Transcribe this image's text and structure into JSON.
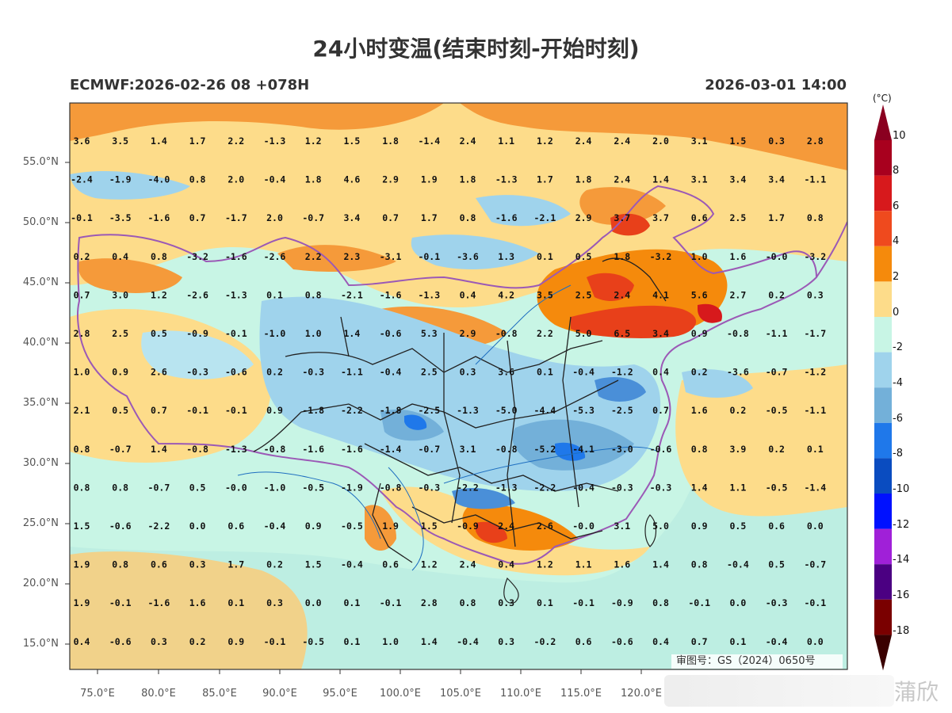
{
  "title": "24小时变温(结束时刻-开始时刻)",
  "subtitle_left": "ECMWF:2026-02-26 08 +078H",
  "subtitle_right": "2026-03-01 14:00",
  "lat_labels": [
    "55.0°N",
    "50.0°N",
    "45.0°N",
    "40.0°N",
    "35.0°N",
    "30.0°N",
    "25.0°N",
    "20.0°N",
    "15.0°N"
  ],
  "lon_labels": [
    "75.0°E",
    "80.0°E",
    "85.0°E",
    "90.0°E",
    "95.0°E",
    "100.0°E",
    "105.0°E",
    "110.0°E",
    "115.0°E",
    "120.0°E"
  ],
  "colorbar": {
    "unit": "(°C)",
    "labels": [
      "10",
      "8",
      "6",
      "4",
      "2",
      "0",
      "-2",
      "-4",
      "-6",
      "-8",
      "-10",
      "-12",
      "-14",
      "-16",
      "-18"
    ],
    "colors": [
      "#a8001e",
      "#d7191c",
      "#ef4a1e",
      "#f58a0c",
      "#fddc8a",
      "#c8f5e5",
      "#9fd3ec",
      "#73b0d9",
      "#1f78ea",
      "#0a4cc0",
      "#0011ff",
      "#a020d8",
      "#4b0082",
      "#7a0000"
    ]
  },
  "approval_number": "审图号：GS（2024）0650号",
  "watermark": "蒲欣",
  "grid_values": [
    [
      "3.6",
      "3.5",
      "1.4",
      "1.7",
      "2.2",
      "-1.3",
      "1.2",
      "1.5",
      "1.8",
      "-1.4",
      "2.4",
      "1.1",
      "1.2",
      "2.4",
      "2.4",
      "2.0",
      "3.1",
      "1.5",
      "0.3",
      "2.8"
    ],
    [
      "-2.4",
      "-1.9",
      "-4.0",
      "0.8",
      "2.0",
      "-0.4",
      "1.8",
      "4.6",
      "2.9",
      "1.9",
      "1.8",
      "-1.3",
      "1.7",
      "1.8",
      "2.4",
      "1.4",
      "3.1",
      "3.4",
      "3.4",
      "-1.1"
    ],
    [
      "-0.1",
      "-3.5",
      "-1.6",
      "0.7",
      "-1.7",
      "2.0",
      "-0.7",
      "3.4",
      "0.7",
      "1.7",
      "0.8",
      "-1.6",
      "-2.1",
      "2.9",
      "3.7",
      "3.7",
      "0.6",
      "2.5",
      "1.7",
      "0.8"
    ],
    [
      "0.2",
      "0.4",
      "0.8",
      "-3.2",
      "-1.6",
      "-2.6",
      "2.2",
      "2.3",
      "-3.1",
      "-0.1",
      "-3.6",
      "1.3",
      "0.1",
      "0.5",
      "1.8",
      "-3.2",
      "1.0",
      "1.6",
      "-0.0",
      "-3.2"
    ],
    [
      "0.7",
      "3.0",
      "1.2",
      "-2.6",
      "-1.3",
      "0.1",
      "0.8",
      "-2.1",
      "-1.6",
      "-1.3",
      "0.4",
      "4.2",
      "3.5",
      "2.5",
      "2.4",
      "4.1",
      "5.6",
      "2.7",
      "0.2",
      "0.3"
    ],
    [
      "2.8",
      "2.5",
      "0.5",
      "-0.9",
      "-0.1",
      "-1.0",
      "1.0",
      "1.4",
      "-0.6",
      "5.3",
      "2.9",
      "-0.8",
      "2.2",
      "5.0",
      "6.5",
      "3.4",
      "0.9",
      "-0.8",
      "-1.1",
      "-1.7"
    ],
    [
      "1.0",
      "0.9",
      "2.6",
      "-0.3",
      "-0.6",
      "0.2",
      "-0.3",
      "-1.1",
      "-0.4",
      "2.5",
      "0.3",
      "3.6",
      "0.1",
      "-0.4",
      "-1.2",
      "0.4",
      "0.2",
      "-3.6",
      "-0.7",
      "-1.2"
    ],
    [
      "2.1",
      "0.5",
      "0.7",
      "-0.1",
      "-0.1",
      "0.9",
      "-1.8",
      "-2.2",
      "-1.8",
      "-2.5",
      "-1.3",
      "-5.0",
      "-4.4",
      "-5.3",
      "-2.5",
      "0.7",
      "1.6",
      "0.2",
      "-0.5",
      "-1.1"
    ],
    [
      "0.8",
      "-0.7",
      "1.4",
      "-0.8",
      "-1.3",
      "-0.8",
      "-1.6",
      "-1.6",
      "-1.4",
      "-0.7",
      "3.1",
      "-0.8",
      "-5.2",
      "-4.1",
      "-3.0",
      "-0.6",
      "0.8",
      "3.9",
      "0.2",
      "0.1"
    ],
    [
      "0.8",
      "0.8",
      "-0.7",
      "0.5",
      "-0.0",
      "-1.0",
      "-0.5",
      "-1.9",
      "-0.8",
      "-0.3",
      "-2.2",
      "-1.3",
      "-2.2",
      "-0.4",
      "-0.3",
      "-0.3",
      "1.4",
      "1.1",
      "-0.5",
      "-1.4"
    ],
    [
      "1.5",
      "-0.6",
      "-2.2",
      "0.0",
      "0.6",
      "-0.4",
      "0.9",
      "-0.5",
      "1.9",
      "1.5",
      "-0.9",
      "2.4",
      "2.6",
      "-0.0",
      "3.1",
      "5.0",
      "0.9",
      "0.5",
      "0.6",
      "0.0"
    ],
    [
      "1.9",
      "0.8",
      "0.6",
      "0.3",
      "1.7",
      "0.2",
      "1.5",
      "-0.4",
      "0.6",
      "1.2",
      "2.4",
      "0.4",
      "1.2",
      "1.1",
      "1.6",
      "1.4",
      "0.8",
      "-0.4",
      "0.5",
      "-0.7"
    ],
    [
      "1.9",
      "-0.1",
      "-1.6",
      "1.6",
      "0.1",
      "0.3",
      "0.0",
      "0.1",
      "-0.1",
      "2.8",
      "0.8",
      "0.3",
      "0.1",
      "-0.1",
      "-0.9",
      "0.8",
      "-0.1",
      "0.0",
      "-0.3",
      "-0.1"
    ],
    [
      "0.4",
      "-0.6",
      "0.3",
      "0.2",
      "0.9",
      "-0.1",
      "-0.5",
      "0.1",
      "1.0",
      "1.4",
      "-0.4",
      "0.3",
      "-0.2",
      "0.6",
      "-0.6",
      "0.4",
      "0.7",
      "0.1",
      "-0.4",
      "0.0"
    ]
  ]
}
